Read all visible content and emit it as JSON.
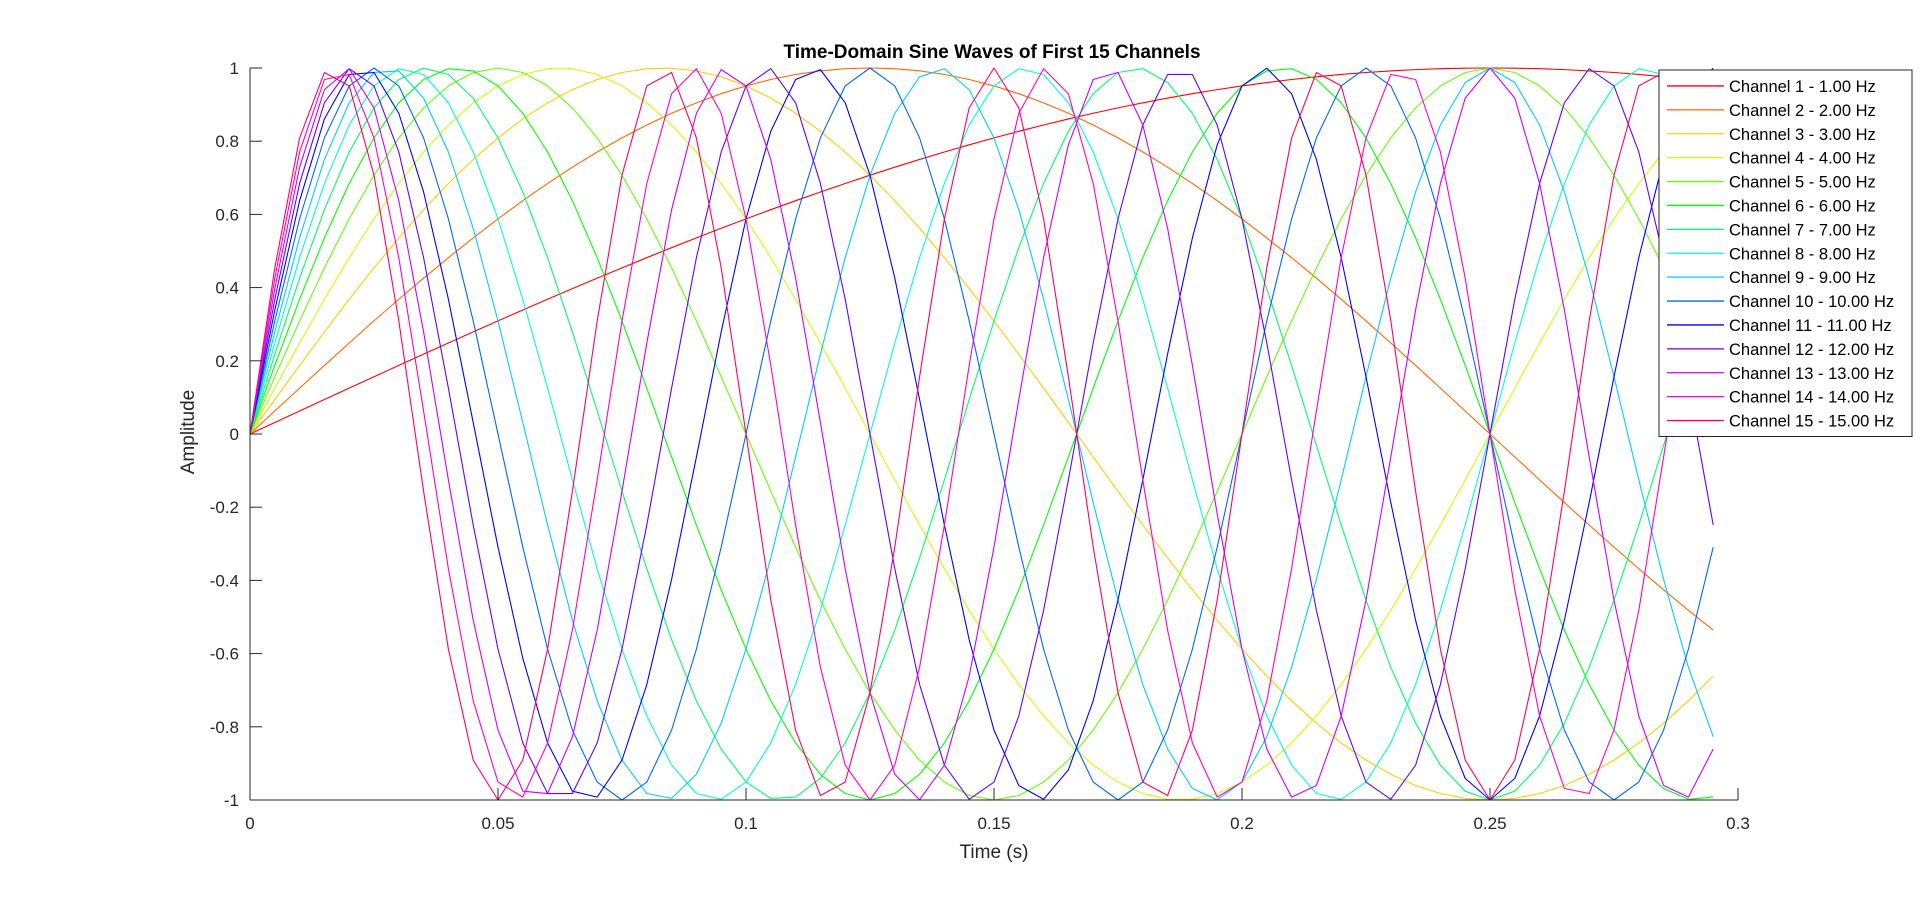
{
  "chart_data": {
    "type": "line",
    "title": "Time-Domain Sine Waves of First 15 Channels",
    "xlabel": "Time (s)",
    "ylabel": "Amplitude",
    "xlim": [
      0,
      0.3
    ],
    "ylim": [
      -1,
      1
    ],
    "x_ticks": [
      "0",
      "0.05",
      "0.1",
      "0.15",
      "0.2",
      "0.25",
      "0.3"
    ],
    "y_ticks": [
      "-1",
      "-0.8",
      "-0.6",
      "-0.4",
      "-0.2",
      "0",
      "0.2",
      "0.4",
      "0.6",
      "0.8",
      "1"
    ],
    "grid": false,
    "legend_position": "top-right",
    "sample_interval": 0.005,
    "x_end": 0.295,
    "series": [
      {
        "name": "Channel 1 - 1.00 Hz",
        "frequency": 1,
        "color": "#ff0000"
      },
      {
        "name": "Channel 2 - 2.00 Hz",
        "frequency": 2,
        "color": "#ff6600"
      },
      {
        "name": "Channel 3 - 3.00 Hz",
        "frequency": 3,
        "color": "#ffcc00"
      },
      {
        "name": "Channel 4 - 4.00 Hz",
        "frequency": 4,
        "color": "#ccff00"
      },
      {
        "name": "Channel 5 - 5.00 Hz",
        "frequency": 5,
        "color": "#66ff00"
      },
      {
        "name": "Channel 6 - 6.00 Hz",
        "frequency": 6,
        "color": "#00ff00"
      },
      {
        "name": "Channel 7 - 7.00 Hz",
        "frequency": 7,
        "color": "#00ff66"
      },
      {
        "name": "Channel 8 - 8.00 Hz",
        "frequency": 8,
        "color": "#00ffcc"
      },
      {
        "name": "Channel 9 - 9.00 Hz",
        "frequency": 9,
        "color": "#00ccff"
      },
      {
        "name": "Channel 10 - 10.00 Hz",
        "frequency": 10,
        "color": "#0066ff"
      },
      {
        "name": "Channel 11 - 11.00 Hz",
        "frequency": 11,
        "color": "#0000ff"
      },
      {
        "name": "Channel 12 - 12.00 Hz",
        "frequency": 12,
        "color": "#6600ff"
      },
      {
        "name": "Channel 13 - 13.00 Hz",
        "frequency": 13,
        "color": "#cc00ff"
      },
      {
        "name": "Channel 14 - 14.00 Hz",
        "frequency": 14,
        "color": "#ff00cc"
      },
      {
        "name": "Channel 15 - 15.00 Hz",
        "frequency": 15,
        "color": "#ff0066"
      }
    ]
  }
}
